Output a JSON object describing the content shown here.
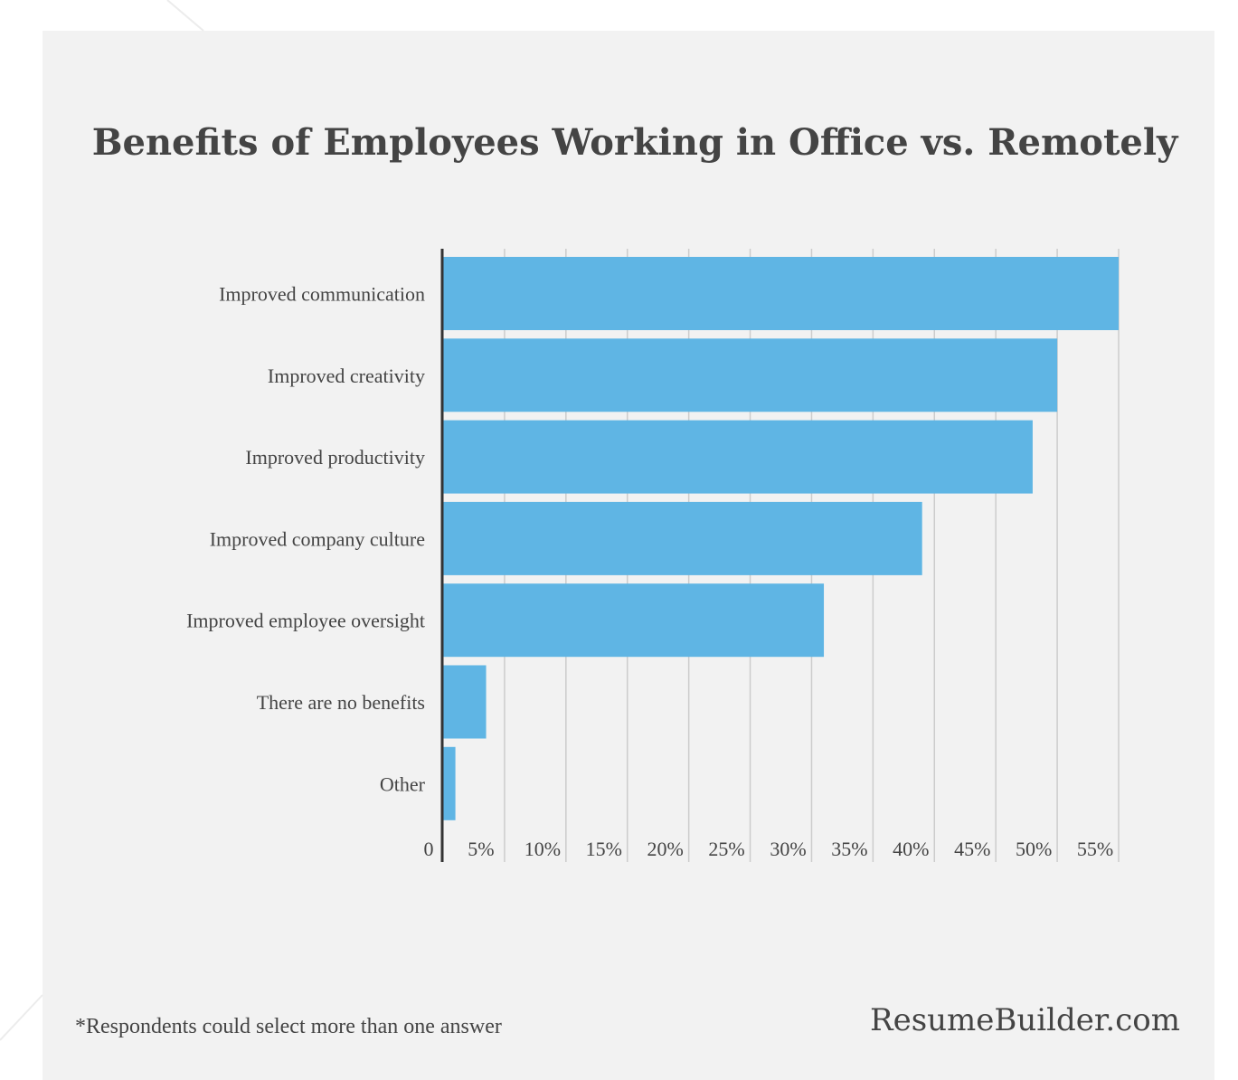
{
  "title": "Benefits of Employees Working in Office vs. Remotely",
  "footnote": "*Respondents could select more than one answer",
  "brand": "ResumeBuilder.com",
  "colors": {
    "bar": "#5fb5e4",
    "panel": "#f2f2f2",
    "text": "#444444",
    "grid": "#cccccc"
  },
  "chart_data": {
    "type": "bar",
    "orientation": "horizontal",
    "title": "Benefits of Employees Working in Office vs. Remotely",
    "categories": [
      "Improved communication",
      "Improved creativity",
      "Improved productivity",
      "Improved company culture",
      "Improved employee oversight",
      "There are no benefits",
      "Other"
    ],
    "values": [
      55,
      50,
      48,
      39,
      31,
      3.5,
      1
    ],
    "ticks": [
      "0",
      "5%",
      "10%",
      "15%",
      "20%",
      "25%",
      "30%",
      "35%",
      "40%",
      "45%",
      "50%",
      "55%"
    ],
    "xlim": [
      0,
      55
    ],
    "grid": true,
    "legend": "none"
  }
}
